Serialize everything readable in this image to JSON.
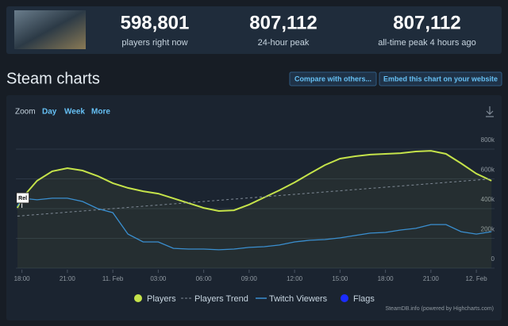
{
  "header": {
    "stats": [
      {
        "value": "598,801",
        "label": "players right now"
      },
      {
        "value": "807,112",
        "label": "24-hour peak"
      },
      {
        "value": "807,112",
        "label": "all-time peak 4 hours ago"
      }
    ]
  },
  "section_title": "Steam charts",
  "buttons": [
    "Compare with others...",
    "Embed this chart on your website"
  ],
  "zoom": {
    "label": "Zoom",
    "options": [
      "Day",
      "Week",
      "More"
    ]
  },
  "credit": "SteamDB.info (powered by Highcharts.com)",
  "chart_data": {
    "type": "line",
    "x": [
      -0.3,
      0,
      1,
      2,
      3,
      4,
      5,
      6,
      7,
      8,
      9,
      10,
      11,
      12,
      13,
      14,
      15,
      16,
      17,
      18,
      19,
      20,
      21,
      22,
      23,
      24,
      25,
      26,
      27,
      28,
      29,
      30,
      31
    ],
    "xlim": [
      -0.4,
      31.2
    ],
    "xticks": [
      {
        "value": 0,
        "label": "18:00"
      },
      {
        "value": 3,
        "label": "21:00"
      },
      {
        "value": 6,
        "label": "11. Feb"
      },
      {
        "value": 9,
        "label": "03:00"
      },
      {
        "value": 12,
        "label": "06:00"
      },
      {
        "value": 15,
        "label": "09:00"
      },
      {
        "value": 18,
        "label": "12:00"
      },
      {
        "value": 21,
        "label": "15:00"
      },
      {
        "value": 24,
        "label": "18:00"
      },
      {
        "value": 27,
        "label": "21:00"
      },
      {
        "value": 30,
        "label": "12. Feb"
      }
    ],
    "ylim": [
      0,
      960000
    ],
    "yticks": [
      0,
      {
        "value": 200000,
        "label": "200k"
      },
      {
        "value": 400000,
        "label": "400k"
      },
      {
        "value": 600000,
        "label": "600k"
      },
      {
        "value": 800000,
        "label": "800k"
      }
    ],
    "grid": true,
    "series": [
      {
        "name": "Players",
        "color": "#c5e34a",
        "values": [
          405000,
          470000,
          587000,
          651000,
          672000,
          656000,
          619000,
          571000,
          539000,
          517000,
          501000,
          469000,
          437000,
          405000,
          384000,
          389000,
          427000,
          475000,
          523000,
          576000,
          635000,
          693000,
          736000,
          752000,
          763000,
          768000,
          773000,
          784000,
          789000,
          768000,
          704000,
          635000,
          587000
        ]
      },
      {
        "name": "Players Trend",
        "color": "#7f8a96",
        "dashed": true,
        "values": [
          350000,
          352000,
          360000,
          368000,
          376000,
          384000,
          392000,
          400000,
          408000,
          416000,
          424000,
          432000,
          440000,
          448000,
          456000,
          464000,
          472000,
          480000,
          488000,
          496000,
          504000,
          512000,
          520000,
          528000,
          536000,
          544000,
          552000,
          560000,
          568000,
          576000,
          584000,
          592000,
          600000
        ]
      },
      {
        "name": "Twitch Viewers",
        "color": "#3a8fd0",
        "values": [
          416000,
          470000,
          459000,
          470000,
          470000,
          448000,
          400000,
          373000,
          229000,
          176000,
          176000,
          133000,
          128000,
          128000,
          123000,
          128000,
          139000,
          144000,
          155000,
          176000,
          187000,
          192000,
          203000,
          219000,
          235000,
          240000,
          256000,
          267000,
          293000,
          293000,
          245000,
          229000,
          245000
        ]
      },
      {
        "name": "Flags",
        "color": "#1b2cff",
        "flags": [
          {
            "x": 0,
            "label": "Rel"
          }
        ]
      }
    ]
  }
}
